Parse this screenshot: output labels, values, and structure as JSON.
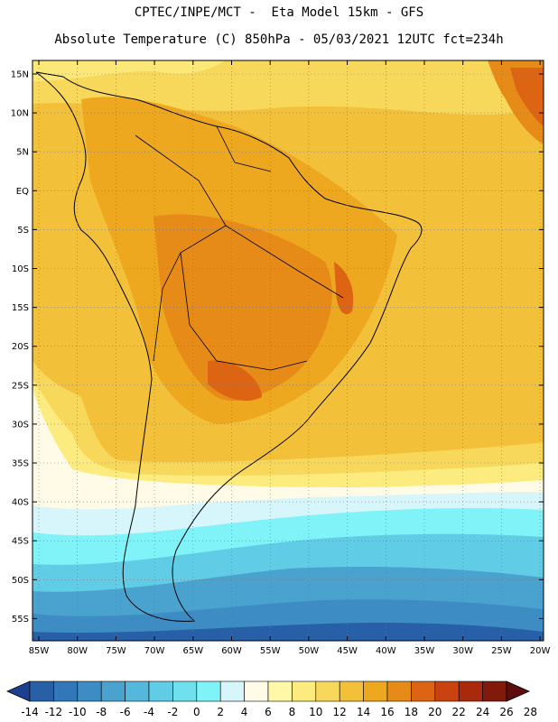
{
  "header": {
    "line1": "CPTEC/INPE/MCT -  Eta Model 15km - GFS",
    "line2": "Absolute Temperature (C) 850hPa - 05/03/2021 12UTC fct=234h"
  },
  "axes": {
    "lat_labels": [
      "15N",
      "10N",
      "5N",
      "EQ",
      "5S",
      "10S",
      "15S",
      "20S",
      "25S",
      "30S",
      "35S",
      "40S",
      "45S",
      "50S",
      "55S"
    ],
    "lon_labels": [
      "85W",
      "80W",
      "75W",
      "70W",
      "65W",
      "60W",
      "55W",
      "50W",
      "45W",
      "40W",
      "35W",
      "30W",
      "25W",
      "20W"
    ]
  },
  "colorbar": {
    "labels": [
      "-14",
      "-12",
      "-10",
      "-8",
      "-6",
      "-4",
      "-2",
      "0",
      "2",
      "4",
      "6",
      "8",
      "10",
      "12",
      "14",
      "16",
      "18",
      "20",
      "22",
      "24",
      "26",
      "28"
    ],
    "colors": [
      "#1c3f8f",
      "#2860a8",
      "#3277b8",
      "#3d8cc4",
      "#4aa2cf",
      "#55b7db",
      "#61cce5",
      "#6fe0ee",
      "#7ff3f8",
      "#d6f6fb",
      "#fffbe6",
      "#fff8a8",
      "#fcec80",
      "#f8d85a",
      "#f3c03a",
      "#eda820",
      "#e68a18",
      "#dc6413",
      "#c9420f",
      "#a8290b",
      "#801a0a",
      "#5e0c0c"
    ]
  }
}
